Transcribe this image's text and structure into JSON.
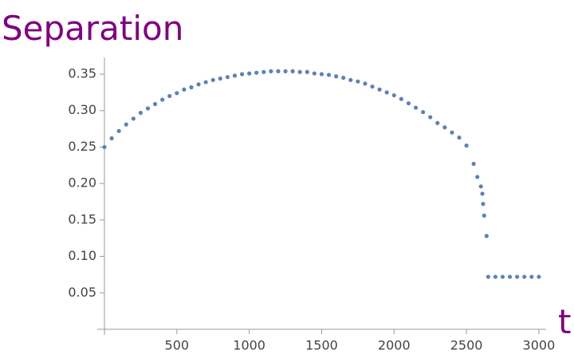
{
  "chart_data": {
    "type": "scatter",
    "title": "Separation",
    "x_label": "t",
    "xlim": [
      0,
      3050
    ],
    "ylim": [
      0,
      0.373
    ],
    "xticks": [
      500,
      1000,
      1500,
      2000,
      2500,
      3000
    ],
    "yticks": [
      0.05,
      {
        "value": 0.1,
        "label": "0.10"
      },
      0.15,
      {
        "value": 0.2,
        "label": "0.20"
      },
      0.25,
      {
        "value": 0.3,
        "label": "0.30"
      },
      0.35
    ],
    "series": [
      {
        "color": "#5e81b5",
        "x": [
          0,
          50,
          100,
          150,
          200,
          250,
          300,
          350,
          400,
          450,
          500,
          550,
          600,
          650,
          700,
          750,
          800,
          850,
          900,
          950,
          1000,
          1050,
          1100,
          1150,
          1200,
          1250,
          1300,
          1350,
          1400,
          1450,
          1500,
          1550,
          1600,
          1650,
          1700,
          1750,
          1800,
          1850,
          1900,
          1950,
          2000,
          2050,
          2100,
          2150,
          2200,
          2250,
          2300,
          2350,
          2400,
          2450,
          2500,
          2550,
          2575,
          2600,
          2610,
          2615,
          2622,
          2639,
          2650,
          2700,
          2750,
          2800,
          2850,
          2900,
          2950,
          3000
        ],
        "values": [
          0.25,
          0.262,
          0.272,
          0.281,
          0.289,
          0.297,
          0.303,
          0.309,
          0.315,
          0.32,
          0.324,
          0.329,
          0.332,
          0.336,
          0.339,
          0.342,
          0.344,
          0.346,
          0.348,
          0.35,
          0.351,
          0.352,
          0.353,
          0.354,
          0.354,
          0.354,
          0.354,
          0.353,
          0.353,
          0.351,
          0.35,
          0.349,
          0.347,
          0.345,
          0.342,
          0.34,
          0.337,
          0.333,
          0.329,
          0.325,
          0.321,
          0.316,
          0.31,
          0.304,
          0.298,
          0.291,
          0.283,
          0.277,
          0.27,
          0.263,
          0.252,
          0.227,
          0.209,
          0.196,
          0.186,
          0.172,
          0.156,
          0.128,
          0.072,
          0.072,
          0.072,
          0.072,
          0.072,
          0.072,
          0.072,
          0.072
        ]
      }
    ]
  }
}
